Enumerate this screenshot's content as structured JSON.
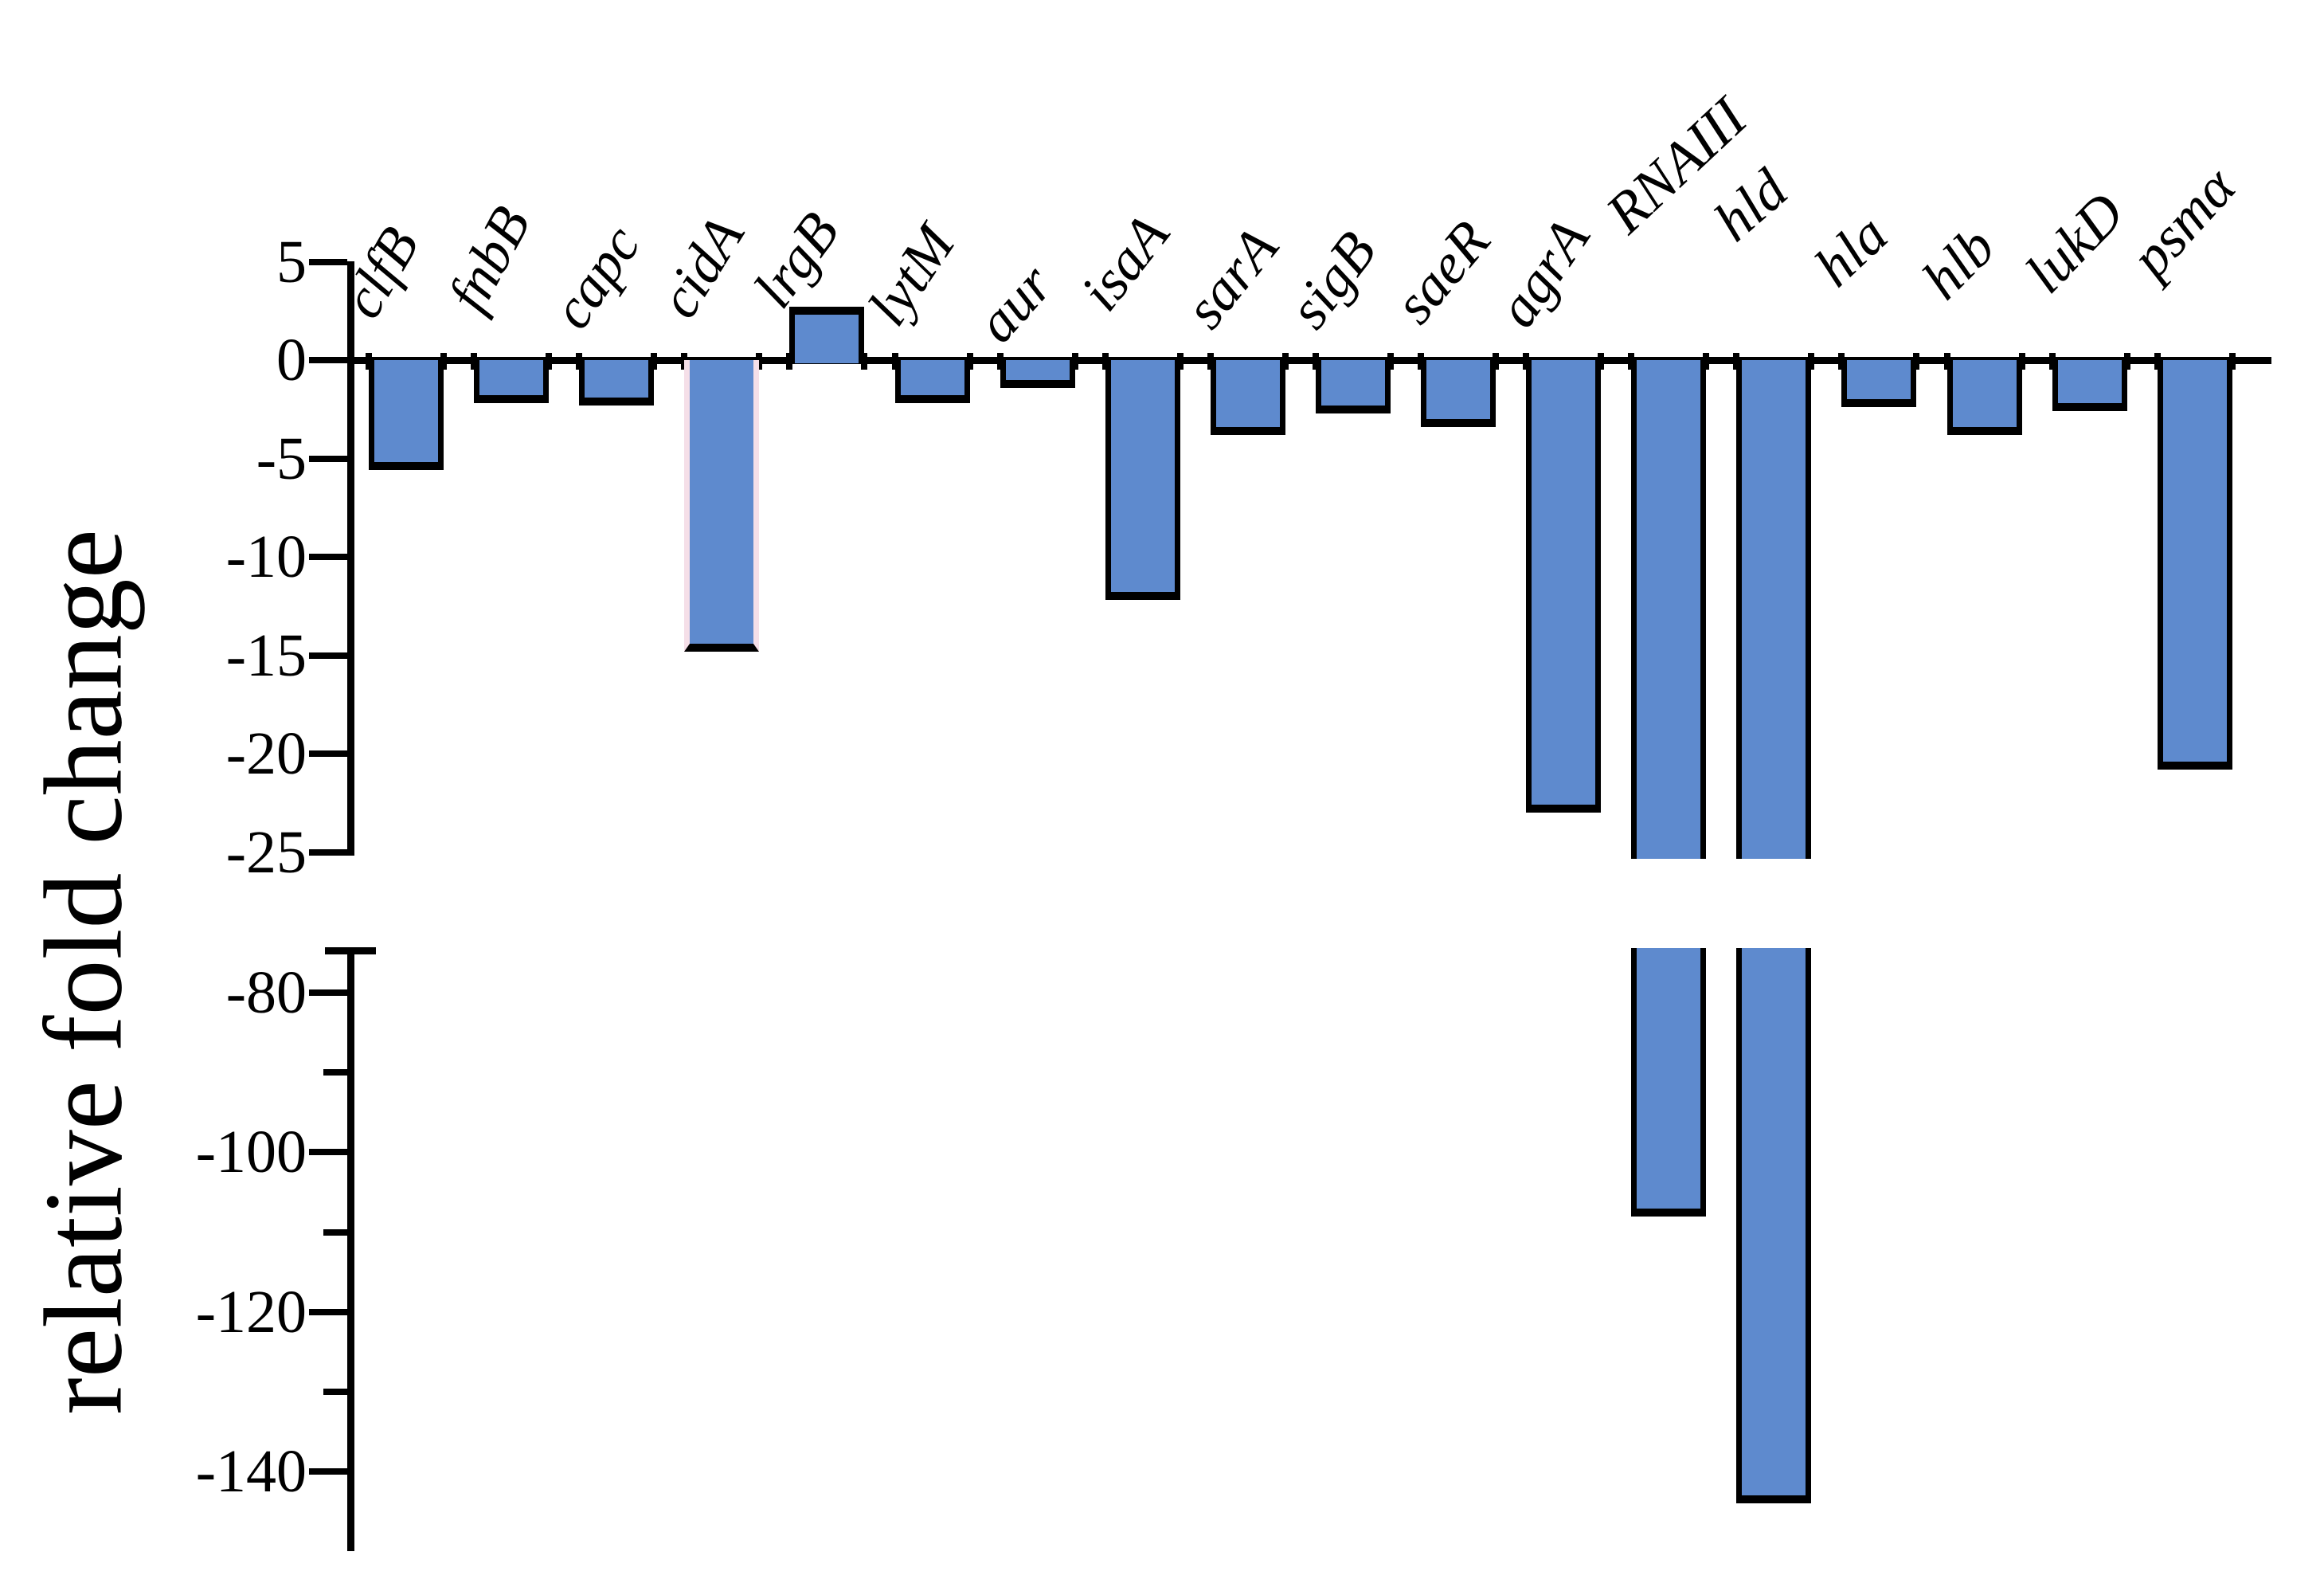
{
  "figure": {
    "background": "#ffffff",
    "y_axis_title": "relative fold change"
  },
  "chart_data": {
    "type": "bar",
    "title": "",
    "xlabel": "",
    "ylabel": "relative fold change",
    "categories": [
      "clfB",
      "fnbB",
      "capc",
      "cidA",
      "lrgB",
      "lytM",
      "aur",
      "isaA",
      "sarA",
      "sigB",
      "saeR",
      "agrA",
      "RNAIII",
      "hld",
      "hla",
      "hlb",
      "lukD",
      "psmα"
    ],
    "values": [
      -5.6,
      -2.2,
      -2.3,
      -14.8,
      2.7,
      -2.2,
      -1.4,
      -12.2,
      -3.8,
      -2.7,
      -3.4,
      -23,
      -108,
      -144,
      -2.4,
      -3.8,
      -2.6,
      -20.8
    ],
    "bar_color": "#5e8ace",
    "bar_border_color": "#000000",
    "highlighted_bar": "cidA",
    "highlight_border_color": "#f5dfe8",
    "grid": false,
    "legend": false,
    "axis_break": true,
    "upper_panel": {
      "range": [
        5,
        -25
      ],
      "ticks": [
        5,
        0,
        -5,
        -10,
        -15,
        -20,
        -25
      ],
      "tick_labels": [
        "5",
        "0",
        "-5",
        "-10",
        "-15",
        "-20",
        "-25"
      ]
    },
    "lower_panel": {
      "range": [
        -75,
        -150
      ],
      "labeled_ticks": [
        -80,
        -100,
        -120,
        -140
      ],
      "tick_labels": [
        "-80",
        "-100",
        "-120",
        "-140"
      ],
      "minor_ticks": [
        -90,
        -110,
        -130
      ]
    },
    "layout_hints": {
      "bars_clipped_at_break": [
        "RNAIII",
        "hld"
      ],
      "label_angles_deg": [
        60,
        62,
        56,
        58,
        54,
        56,
        48,
        52,
        51,
        53,
        50,
        56,
        43,
        41,
        43,
        45,
        46,
        48
      ],
      "label_anchor_y": [
        410,
        402,
        424,
        410,
        398,
        420,
        442,
        402,
        424,
        424,
        418,
        422,
        305,
        315,
        372,
        388,
        380,
        360
      ],
      "label_anchor_dx": [
        -30,
        -28,
        -34,
        -30,
        -46,
        -34,
        -36,
        -34,
        -36,
        -36,
        -38,
        -36,
        -42,
        -40,
        -44,
        -40,
        -42,
        -40
      ]
    }
  }
}
